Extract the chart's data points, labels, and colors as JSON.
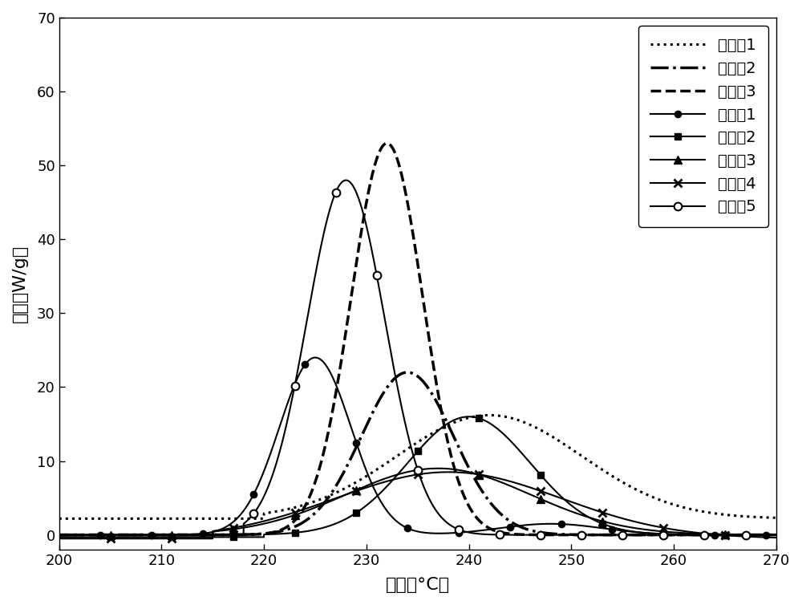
{
  "title": "",
  "xlabel": "温度（°C）",
  "ylabel": "热流（W/g）",
  "xlim": [
    200,
    270
  ],
  "ylim": [
    -2,
    70
  ],
  "xticks": [
    200,
    210,
    220,
    230,
    240,
    250,
    260,
    270
  ],
  "yticks": [
    0,
    10,
    20,
    30,
    40,
    50,
    60,
    70
  ],
  "background_color": "#ffffff",
  "legend_entries": [
    "实施例1",
    "实施例2",
    "实施例3",
    "比较例1",
    "比较例2",
    "比较例3",
    "比较例4",
    "比较例5"
  ]
}
